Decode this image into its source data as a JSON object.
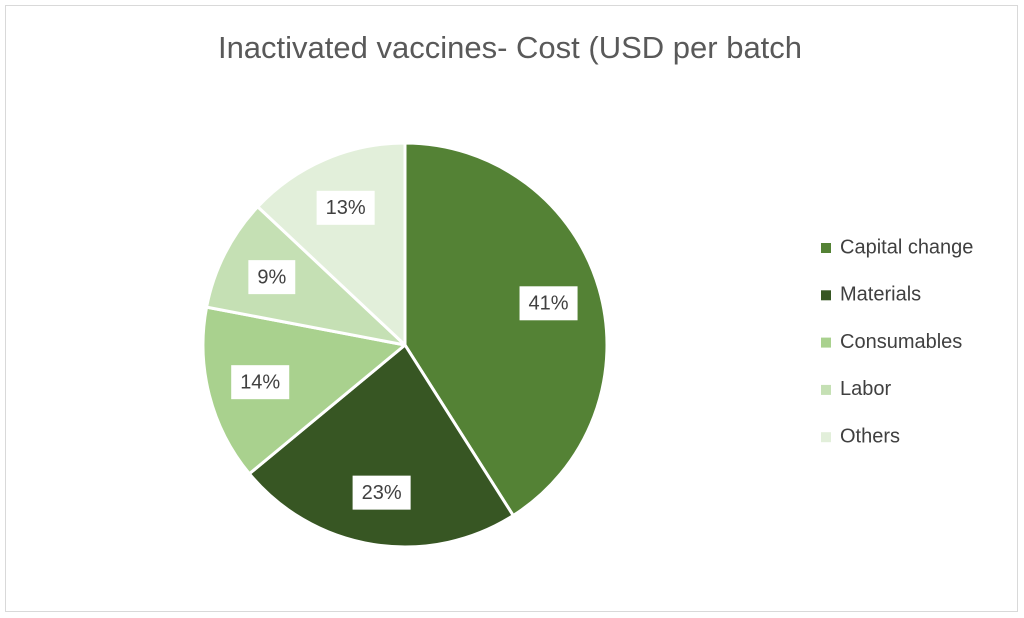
{
  "chart_data": {
    "type": "pie",
    "title": "Inactivated vaccines- Cost (USD per batch",
    "categories": [
      "Capital change",
      "Materials",
      "Consumables",
      "Labor",
      "Others"
    ],
    "values": [
      41,
      23,
      14,
      9,
      13
    ],
    "value_labels": [
      "41%",
      "23%",
      "14%",
      "9%",
      "13%"
    ],
    "colors": [
      "#548235",
      "#375623",
      "#a9d18e",
      "#c5e0b4",
      "#e2efda"
    ],
    "legend": "right"
  }
}
